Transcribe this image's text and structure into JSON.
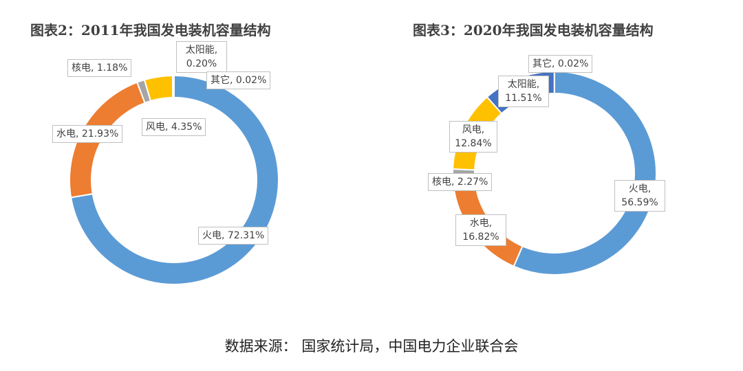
{
  "chart_data": [
    {
      "type": "pie",
      "variant": "donut",
      "title": "图表2：2011年我国发电装机容量结构",
      "categories": [
        "火电",
        "水电",
        "核电",
        "风电",
        "太阳能",
        "其它"
      ],
      "values": [
        72.31,
        21.93,
        1.18,
        4.35,
        0.2,
        0.02
      ],
      "labels": [
        "火电, 72.31%",
        "水电, 21.93%",
        "核电, 1.18%",
        "风电, 4.35%",
        "太阳能, 0.20%",
        "其它, 0.02%"
      ]
    },
    {
      "type": "pie",
      "variant": "donut",
      "title": "图表3：2020年我国发电装机容量结构",
      "categories": [
        "火电",
        "水电",
        "核电",
        "风电",
        "太阳能",
        "其它"
      ],
      "values": [
        56.59,
        16.82,
        2.27,
        12.84,
        11.51,
        0.02
      ],
      "labels": [
        "火电, 56.59%",
        "水电, 16.82%",
        "核电, 2.27%",
        "风电, 12.84%",
        "太阳能, 11.51%",
        "其它, 0.02%"
      ]
    }
  ],
  "colors": [
    "#5B9BD5",
    "#ED7D31",
    "#A5A5A5",
    "#FFC000",
    "#4472C4",
    "#70AD47"
  ],
  "source": "数据来源： 国家统计局，中国电力企业联合会"
}
